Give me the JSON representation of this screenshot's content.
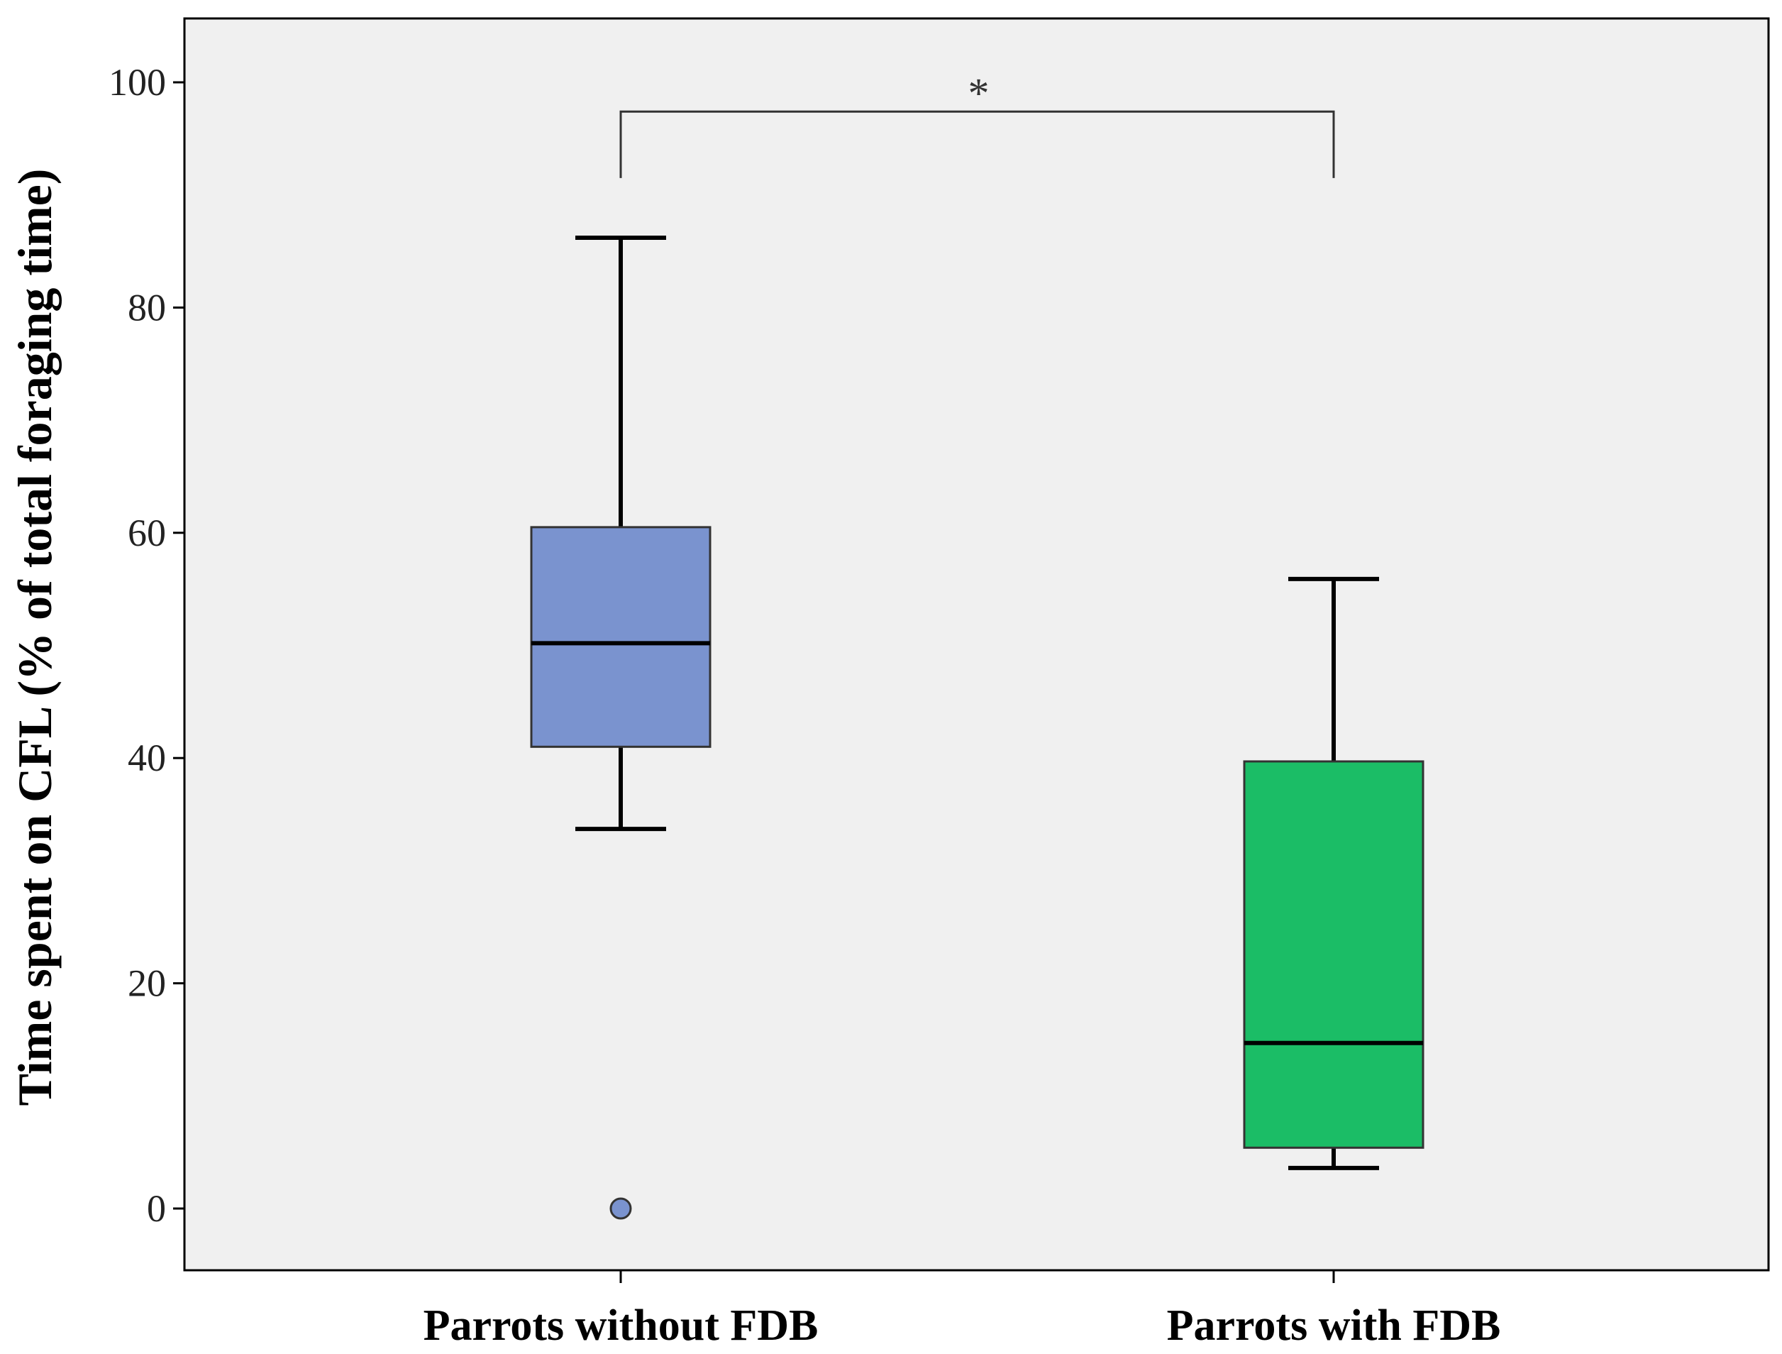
{
  "chart_data": {
    "type": "boxplot",
    "ylabel": "Time spent on CFL (% of total foraging time)",
    "xlabel": "",
    "ylim": [
      -5,
      105
    ],
    "yticks": [
      0,
      20,
      40,
      60,
      80,
      100
    ],
    "grid": false,
    "categories": [
      "Parrots without FDB",
      "Parrots with FDB"
    ],
    "boxes": [
      {
        "category": "Parrots without FDB",
        "whisker_low": 33.7,
        "q1": 41.0,
        "median": 50.2,
        "q3": 60.5,
        "whisker_high": 86.2,
        "outliers": [
          0.0
        ],
        "color": "#7a93cf"
      },
      {
        "category": "Parrots with FDB",
        "whisker_low": 3.6,
        "q1": 5.4,
        "median": 14.7,
        "q3": 39.7,
        "whisker_high": 55.9,
        "outliers": [],
        "color": "#1bbd66"
      }
    ],
    "significance": {
      "label": "*",
      "between": [
        "Parrots without FDB",
        "Parrots with FDB"
      ],
      "bracket_y": 97.4,
      "leg_low_y": 91.5
    }
  },
  "colors": {
    "plot_background": "#f0f0f0",
    "frame": "#000000",
    "whisker": "#000000"
  }
}
